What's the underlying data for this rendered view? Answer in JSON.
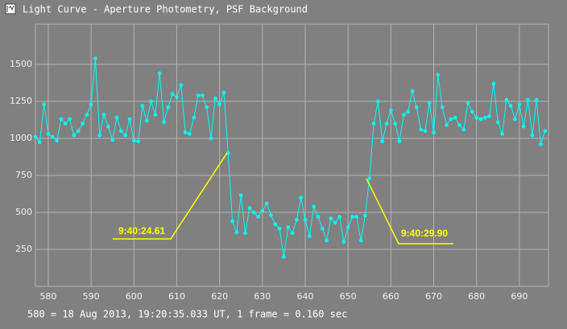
{
  "window_title": "Light Curve - Aperture Photometry, PSF Background",
  "chart_data": {
    "type": "line",
    "x": [
      577,
      578,
      579,
      580,
      581,
      582,
      583,
      584,
      585,
      586,
      587,
      588,
      589,
      590,
      591,
      592,
      593,
      594,
      595,
      596,
      597,
      598,
      599,
      600,
      601,
      602,
      603,
      604,
      605,
      606,
      607,
      608,
      609,
      610,
      611,
      612,
      613,
      614,
      615,
      616,
      617,
      618,
      619,
      620,
      621,
      622,
      623,
      624,
      625,
      626,
      627,
      628,
      629,
      630,
      631,
      632,
      633,
      634,
      635,
      636,
      637,
      638,
      639,
      640,
      641,
      642,
      643,
      644,
      645,
      646,
      647,
      648,
      649,
      650,
      651,
      652,
      653,
      654,
      655,
      656,
      657,
      658,
      659,
      660,
      661,
      662,
      663,
      664,
      665,
      666,
      667,
      668,
      669,
      670,
      671,
      672,
      673,
      674,
      675,
      676,
      677,
      678,
      679,
      680,
      681,
      682,
      683,
      684,
      685,
      686,
      687,
      688,
      689,
      690,
      691,
      692,
      693,
      694,
      695,
      696
    ],
    "values": [
      1010,
      975,
      1230,
      1030,
      1010,
      985,
      1130,
      1100,
      1130,
      1020,
      1050,
      1100,
      1160,
      1230,
      1540,
      1020,
      1160,
      1080,
      990,
      1140,
      1050,
      1020,
      1130,
      985,
      980,
      1220,
      1120,
      1250,
      1160,
      1440,
      1110,
      1210,
      1300,
      1280,
      1360,
      1040,
      1030,
      1140,
      1290,
      1290,
      1210,
      1000,
      1270,
      1230,
      1310,
      900,
      440,
      365,
      615,
      360,
      530,
      500,
      470,
      510,
      560,
      480,
      420,
      390,
      200,
      400,
      360,
      450,
      600,
      450,
      340,
      540,
      470,
      390,
      310,
      460,
      430,
      470,
      300,
      400,
      470,
      470,
      310,
      480,
      730,
      1100,
      1250,
      980,
      1100,
      1190,
      1100,
      980,
      1160,
      1180,
      1320,
      1210,
      1060,
      1050,
      1240,
      1040,
      1430,
      1210,
      1090,
      1130,
      1140,
      1090,
      1060,
      1240,
      1180,
      1140,
      1130,
      1140,
      1150,
      1370,
      1110,
      1030,
      1260,
      1220,
      1130,
      1230,
      1080,
      1260,
      1020,
      1260,
      960,
      1050
    ],
    "color": "#00ffff",
    "xlim": [
      577,
      696.8
    ],
    "ylim": [
      0,
      1772
    ],
    "xticks": [
      580,
      590,
      600,
      610,
      620,
      630,
      640,
      650,
      660,
      670,
      680,
      690
    ],
    "yticks": [
      250,
      500,
      750,
      1000,
      1250,
      1500
    ],
    "grid": true,
    "annotations": [
      "9:40:24.61",
      "9:40:29.90"
    ],
    "footer": "580 = 18 Aug 2013, 19:20:35.033 UT, 1 frame = 0.160 sec"
  }
}
